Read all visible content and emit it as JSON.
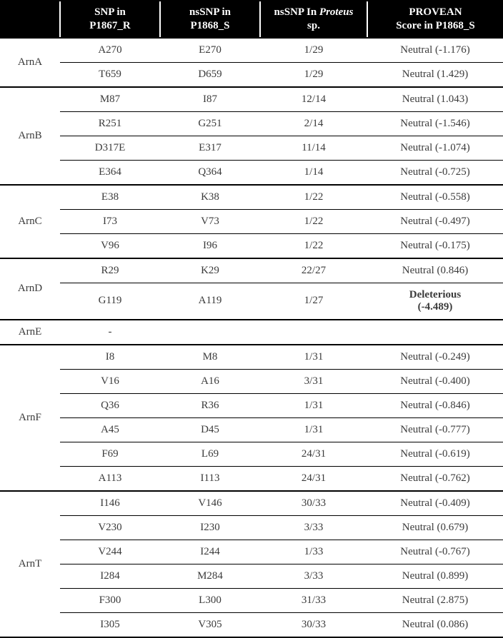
{
  "table": {
    "headers": {
      "gene": "",
      "snp": "SNP in\nP1867_R",
      "nssnp": "nsSNP in\nP1868_S",
      "proteus_pre": "nsSNP In ",
      "proteus_ital": "Proteus",
      "proteus_post": "\nsp.",
      "provean": "PROVEAN\nScore in P1868_S"
    },
    "groups": [
      {
        "gene": "ArnA",
        "rows": [
          {
            "snp": "A270",
            "nssnp": "E270",
            "proteus": "1/29",
            "provean": "Neutral (-1.176)"
          },
          {
            "snp": "T659",
            "nssnp": "D659",
            "proteus": "1/29",
            "provean": "Neutral (1.429)"
          }
        ]
      },
      {
        "gene": "ArnB",
        "rows": [
          {
            "snp": "M87",
            "nssnp": "I87",
            "proteus": "12/14",
            "provean": "Neutral (1.043)"
          },
          {
            "snp": "R251",
            "nssnp": "G251",
            "proteus": "2/14",
            "provean": "Neutral (-1.546)"
          },
          {
            "snp": "D317E",
            "nssnp": "E317",
            "proteus": "11/14",
            "provean": "Neutral (-1.074)"
          },
          {
            "snp": "E364",
            "nssnp": "Q364",
            "proteus": "1/14",
            "provean": "Neutral (-0.725)"
          }
        ]
      },
      {
        "gene": "ArnC",
        "rows": [
          {
            "snp": "E38",
            "nssnp": "K38",
            "proteus": "1/22",
            "provean": "Neutral (-0.558)"
          },
          {
            "snp": "I73",
            "nssnp": "V73",
            "proteus": "1/22",
            "provean": "Neutral (-0.497)"
          },
          {
            "snp": "V96",
            "nssnp": "I96",
            "proteus": "1/22",
            "provean": "Neutral (-0.175)"
          }
        ]
      },
      {
        "gene": "ArnD",
        "rows": [
          {
            "snp": "R29",
            "nssnp": "K29",
            "proteus": "22/27",
            "provean": "Neutral (0.846)"
          },
          {
            "snp": "G119",
            "nssnp": "A119",
            "proteus": "1/27",
            "provean": "Deleterious\n(-4.489)",
            "bold": true
          }
        ]
      },
      {
        "gene": "ArnE",
        "rows": [
          {
            "snp": "-",
            "nssnp": "",
            "proteus": "",
            "provean": ""
          }
        ]
      },
      {
        "gene": "ArnF",
        "rows": [
          {
            "snp": "I8",
            "nssnp": "M8",
            "proteus": "1/31",
            "provean": "Neutral (-0.249)"
          },
          {
            "snp": "V16",
            "nssnp": "A16",
            "proteus": "3/31",
            "provean": "Neutral (-0.400)"
          },
          {
            "snp": "Q36",
            "nssnp": "R36",
            "proteus": "1/31",
            "provean": "Neutral (-0.846)"
          },
          {
            "snp": "A45",
            "nssnp": "D45",
            "proteus": "1/31",
            "provean": "Neutral (-0.777)"
          },
          {
            "snp": "F69",
            "nssnp": "L69",
            "proteus": "24/31",
            "provean": "Neutral (-0.619)"
          },
          {
            "snp": "A113",
            "nssnp": "I113",
            "proteus": "24/31",
            "provean": "Neutral (-0.762)"
          }
        ]
      },
      {
        "gene": "ArnT",
        "rows": [
          {
            "snp": "I146",
            "nssnp": "V146",
            "proteus": "30/33",
            "provean": "Neutral (-0.409)"
          },
          {
            "snp": "V230",
            "nssnp": "I230",
            "proteus": "3/33",
            "provean": "Neutral (0.679)"
          },
          {
            "snp": "V244",
            "nssnp": "I244",
            "proteus": "1/33",
            "provean": "Neutral (-0.767)"
          },
          {
            "snp": "I284",
            "nssnp": "M284",
            "proteus": "3/33",
            "provean": "Neutral (0.899)"
          },
          {
            "snp": "F300",
            "nssnp": "L300",
            "proteus": "31/33",
            "provean": "Neutral (2.875)"
          },
          {
            "snp": "I305",
            "nssnp": "V305",
            "proteus": "30/33",
            "provean": "Neutral (0.086)"
          }
        ]
      }
    ]
  }
}
